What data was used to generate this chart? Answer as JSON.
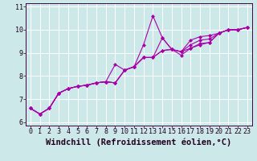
{
  "title": "",
  "xlabel": "Windchill (Refroidissement éolien,°C)",
  "ylabel": "",
  "bg_color": "#cce8e8",
  "line_color": "#aa00aa",
  "grid_color": "#ffffff",
  "xlim": [
    -0.5,
    23.5
  ],
  "ylim": [
    5.85,
    11.15
  ],
  "xticks": [
    0,
    1,
    2,
    3,
    4,
    5,
    6,
    7,
    8,
    9,
    10,
    11,
    12,
    13,
    14,
    15,
    16,
    17,
    18,
    19,
    20,
    21,
    22,
    23
  ],
  "yticks": [
    6,
    7,
    8,
    9,
    10,
    11
  ],
  "x": [
    0,
    1,
    2,
    3,
    4,
    5,
    6,
    7,
    8,
    9,
    10,
    11,
    12,
    13,
    14,
    15,
    16,
    17,
    18,
    19,
    20,
    21,
    22,
    23
  ],
  "lines": [
    [
      6.6,
      6.35,
      6.6,
      7.25,
      7.45,
      7.55,
      7.6,
      7.7,
      7.75,
      8.5,
      8.25,
      8.4,
      9.35,
      10.6,
      9.65,
      9.15,
      9.05,
      9.2,
      9.4,
      9.45,
      9.85,
      10.0,
      10.0,
      10.1
    ],
    [
      6.6,
      6.35,
      6.6,
      7.25,
      7.45,
      7.55,
      7.6,
      7.7,
      7.75,
      7.7,
      8.25,
      8.4,
      8.8,
      8.8,
      9.65,
      9.15,
      9.05,
      9.55,
      9.7,
      9.75,
      9.85,
      10.0,
      10.0,
      10.1
    ],
    [
      6.6,
      6.35,
      6.6,
      7.25,
      7.45,
      7.55,
      7.6,
      7.7,
      7.75,
      7.7,
      8.25,
      8.4,
      8.8,
      8.8,
      9.1,
      9.15,
      9.05,
      9.35,
      9.55,
      9.6,
      9.85,
      10.0,
      10.0,
      10.1
    ],
    [
      6.6,
      6.35,
      6.6,
      7.25,
      7.45,
      7.55,
      7.6,
      7.7,
      7.75,
      7.7,
      8.25,
      8.4,
      8.8,
      8.8,
      9.1,
      9.15,
      8.9,
      9.2,
      9.35,
      9.45,
      9.85,
      10.0,
      10.0,
      10.1
    ]
  ],
  "xlabel_fontsize": 7.5,
  "tick_fontsize": 6.0,
  "marker": "D",
  "marker_size": 2.0,
  "linewidth": 0.8
}
